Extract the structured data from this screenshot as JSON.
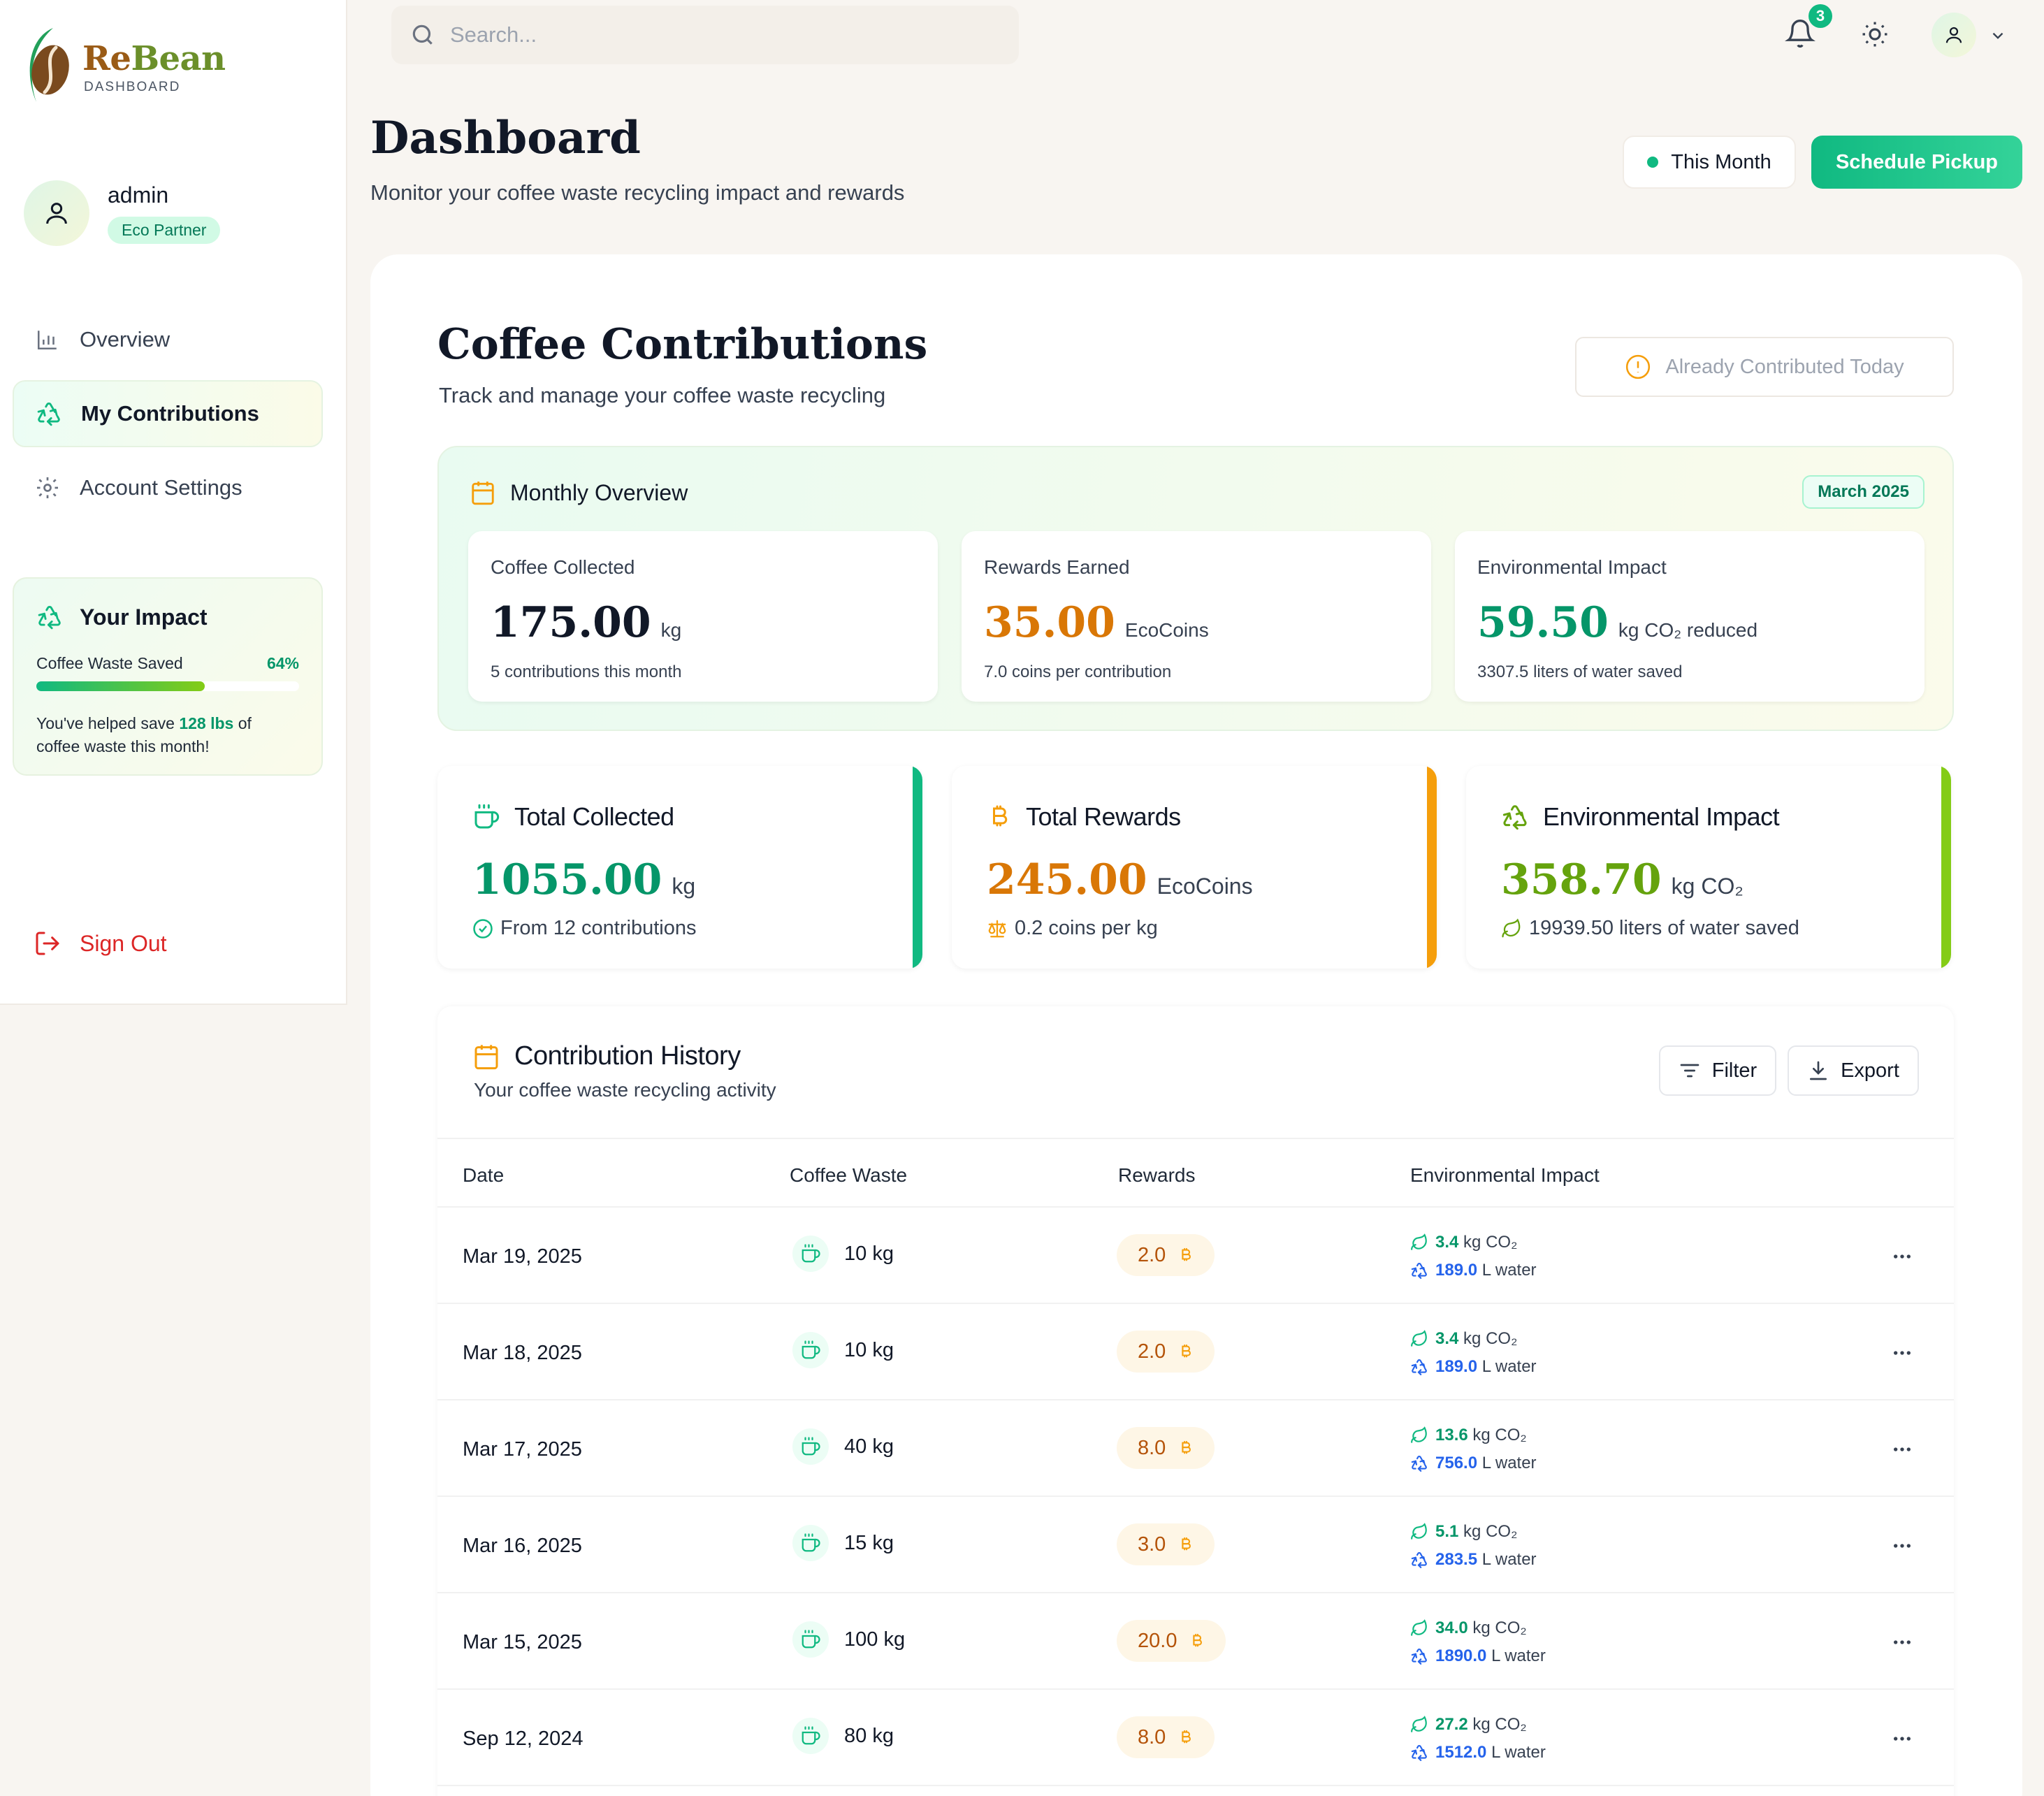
{
  "brand": {
    "part1": "Re",
    "part2": "Bean",
    "subtitle": "DASHBOARD"
  },
  "user": {
    "name": "admin",
    "badge": "Eco Partner"
  },
  "nav": [
    {
      "label": "Overview",
      "icon": "bar-chart-icon"
    },
    {
      "label": "My Contributions",
      "icon": "recycle-icon",
      "active": true
    },
    {
      "label": "Account Settings",
      "icon": "gear-icon"
    }
  ],
  "impact": {
    "title": "Your Impact",
    "metric_label": "Coffee Waste Saved",
    "percent_label": "64%",
    "percent_value": 0.64,
    "note_prefix": "You've helped save ",
    "note_value": "128 lbs",
    "note_suffix": " of coffee waste this month!"
  },
  "signout": {
    "label": "Sign Out"
  },
  "topbar": {
    "search_placeholder": "Search...",
    "notification_count": "3"
  },
  "header": {
    "title": "Dashboard",
    "subtitle": "Monitor your coffee waste recycling impact and rewards",
    "period_label": "This Month",
    "schedule_label": "Schedule Pickup"
  },
  "contributions": {
    "title": "Coffee Contributions",
    "subtitle": "Track and manage your coffee waste recycling",
    "already_label": "Already Contributed Today"
  },
  "monthly": {
    "title": "Monthly Overview",
    "month": "March 2025",
    "stats": [
      {
        "label": "Coffee Collected",
        "value": "175.00",
        "unit": "kg",
        "note": "5 contributions this month",
        "color": "#111827"
      },
      {
        "label": "Rewards Earned",
        "value": "35.00",
        "unit": "EcoCoins",
        "note": "7.0 coins per contribution",
        "color": "#d97706"
      },
      {
        "label": "Environmental Impact",
        "value": "59.50",
        "unit": "kg CO₂ reduced",
        "note": "3307.5 liters of water saved",
        "color": "#059669"
      }
    ]
  },
  "totals": [
    {
      "title": "Total Collected",
      "value": "1055.00",
      "unit": "kg",
      "note": "From 12 contributions",
      "color": "#059669",
      "edge": "#10b981"
    },
    {
      "title": "Total Rewards",
      "value": "245.00",
      "unit": "EcoCoins",
      "note": "0.2 coins per kg",
      "color": "#d97706",
      "edge": "#f59e0b"
    },
    {
      "title": "Environmental Impact",
      "value": "358.70",
      "unit": "kg CO₂",
      "note": "19939.50 liters of water saved",
      "color": "#65a30d",
      "edge": "#84cc16"
    }
  ],
  "history": {
    "title": "Contribution History",
    "subtitle": "Your coffee waste recycling activity",
    "filter_label": "Filter",
    "export_label": "Export",
    "columns": [
      "Date",
      "Coffee Waste",
      "Rewards",
      "Environmental Impact"
    ],
    "co2_unit": "kg CO₂",
    "water_unit": "L water",
    "rows": [
      {
        "date": "Mar 19, 2025",
        "waste": "10 kg",
        "reward": "2.0",
        "co2": "3.4",
        "water": "189.0"
      },
      {
        "date": "Mar 18, 2025",
        "waste": "10 kg",
        "reward": "2.0",
        "co2": "3.4",
        "water": "189.0"
      },
      {
        "date": "Mar 17, 2025",
        "waste": "40 kg",
        "reward": "8.0",
        "co2": "13.6",
        "water": "756.0"
      },
      {
        "date": "Mar 16, 2025",
        "waste": "15 kg",
        "reward": "3.0",
        "co2": "5.1",
        "water": "283.5"
      },
      {
        "date": "Mar 15, 2025",
        "waste": "100 kg",
        "reward": "20.0",
        "co2": "34.0",
        "water": "1890.0"
      },
      {
        "date": "Sep 12, 2024",
        "waste": "80 kg",
        "reward": "8.0",
        "co2": "27.2",
        "water": "1512.0"
      }
    ]
  },
  "colors": {
    "accent": "#10b981",
    "amber": "#d97706",
    "danger": "#dc2626",
    "water": "#2563eb"
  }
}
